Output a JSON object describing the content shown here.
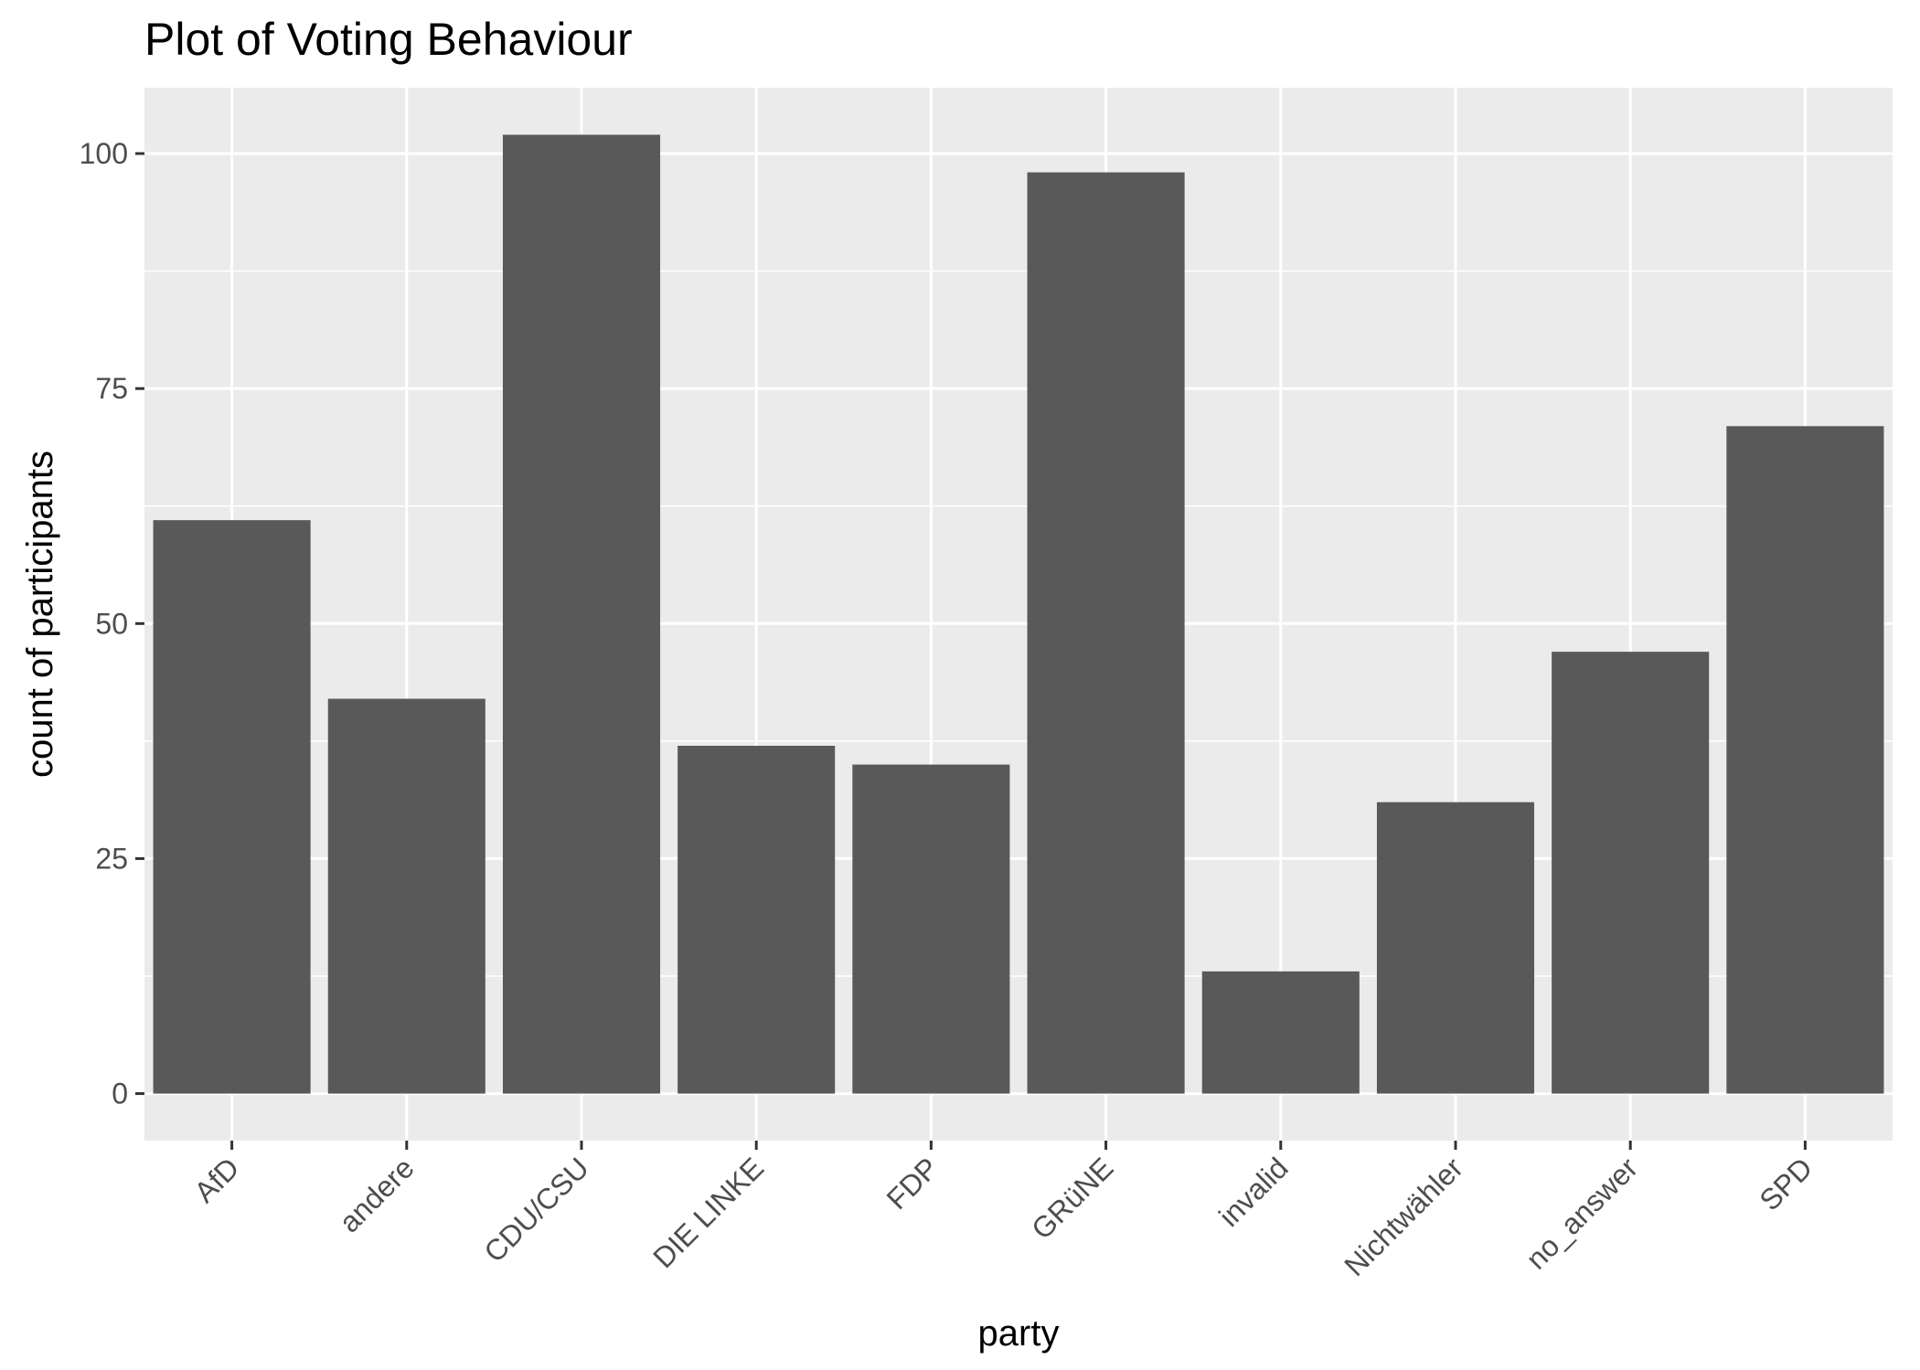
{
  "chart_data": {
    "type": "bar",
    "title": "Plot of Voting Behaviour",
    "xlabel": "party",
    "ylabel": "count of participants",
    "categories": [
      "AfD",
      "andere",
      "CDU/CSU",
      "DIE LINKE",
      "FDP",
      "GRüNE",
      "invalid",
      "Nichtwähler",
      "no_answer",
      "SPD"
    ],
    "values": [
      61,
      42,
      102,
      37,
      35,
      98,
      13,
      31,
      47,
      71
    ],
    "ylim": [
      -5,
      107
    ],
    "yticks": [
      0,
      25,
      50,
      75,
      100
    ],
    "ytick_labels": [
      "0",
      "25",
      "50",
      "75",
      "100"
    ],
    "grid": true,
    "colors": {
      "bar": "#595959",
      "panel": "#ebebeb",
      "grid": "#ffffff",
      "tick": "#333333",
      "tick_label": "#4d4d4d"
    }
  }
}
